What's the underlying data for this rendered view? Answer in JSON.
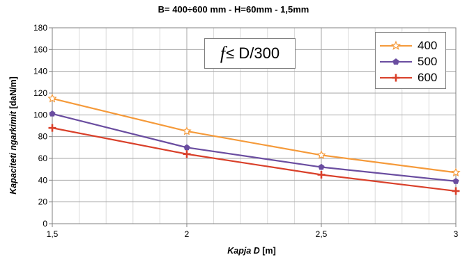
{
  "chart_data": {
    "type": "line",
    "title": "B= 400÷600 mm - H=60mm - 1,5mm",
    "ylabel": "Kapaciteti ngarkimit [daN/m]",
    "ylabel_italic": "Kapaciteti ngarkimit",
    "ylabel_unit": " [daN/m]",
    "xlabel": "Kapja D [m]",
    "xlabel_italic": "Kapja D",
    "xlabel_unit": " [m]",
    "x": [
      1.5,
      2,
      2.5,
      3
    ],
    "x_tick_labels": [
      "1,5",
      "2",
      "2,5",
      "3"
    ],
    "y_tick_labels": [
      "0",
      "20",
      "40",
      "60",
      "80",
      "100",
      "120",
      "140",
      "160",
      "180"
    ],
    "xlim": [
      1.5,
      3
    ],
    "ylim": [
      0,
      180
    ],
    "grid": true,
    "legend_position": "top-right",
    "annotation": {
      "italic_part": "f",
      "text": "≤ D/300"
    },
    "series": [
      {
        "name": "400",
        "values": [
          115,
          85,
          63,
          47
        ],
        "color": "#F59A3A",
        "marker": "star-open"
      },
      {
        "name": "500",
        "values": [
          101,
          70,
          52,
          39
        ],
        "color": "#6A4DA0",
        "marker": "pentagon"
      },
      {
        "name": "600",
        "values": [
          88,
          64,
          45,
          30
        ],
        "color": "#D9402A",
        "marker": "plus"
      }
    ]
  }
}
